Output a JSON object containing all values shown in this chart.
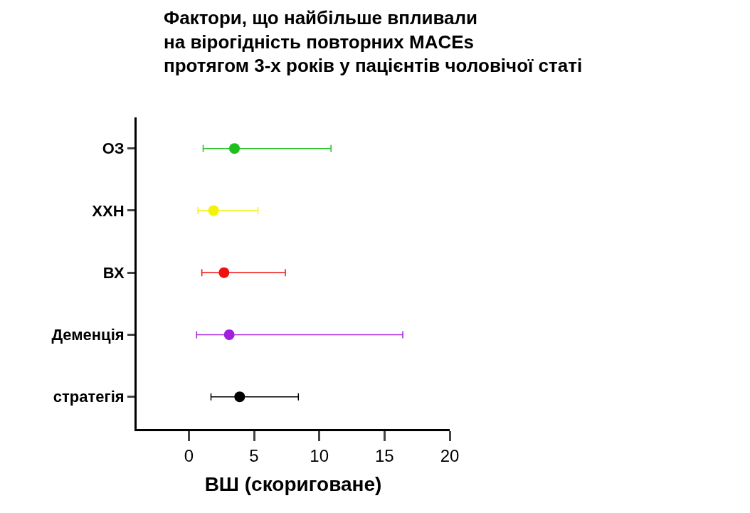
{
  "chart_data": {
    "type": "scatter",
    "orientation": "horizontal",
    "title": "Фактори, що найбільше впливали\nна вірогідність повторних MACEs\nпротягом 3-х років у пацієнтів чоловічої статі",
    "xlabel": "ВШ (скориговане)",
    "categories": [
      "ОЗ",
      "ХХН",
      "ВХ",
      "Деменція",
      "стратегія"
    ],
    "values": [
      3.5,
      1.9,
      2.7,
      3.1,
      3.9
    ],
    "errors": [
      [
        1.1,
        10.9
      ],
      [
        0.7,
        5.3
      ],
      [
        1.0,
        7.4
      ],
      [
        0.6,
        16.4
      ],
      [
        1.7,
        8.4
      ]
    ],
    "colors": [
      "#1fbf1f",
      "#f2f20a",
      "#f01010",
      "#a020e0",
      "#000000"
    ],
    "xlim": [
      -4,
      20
    ],
    "xticks": [
      0,
      5,
      10,
      15,
      20
    ],
    "marker": "circle"
  }
}
